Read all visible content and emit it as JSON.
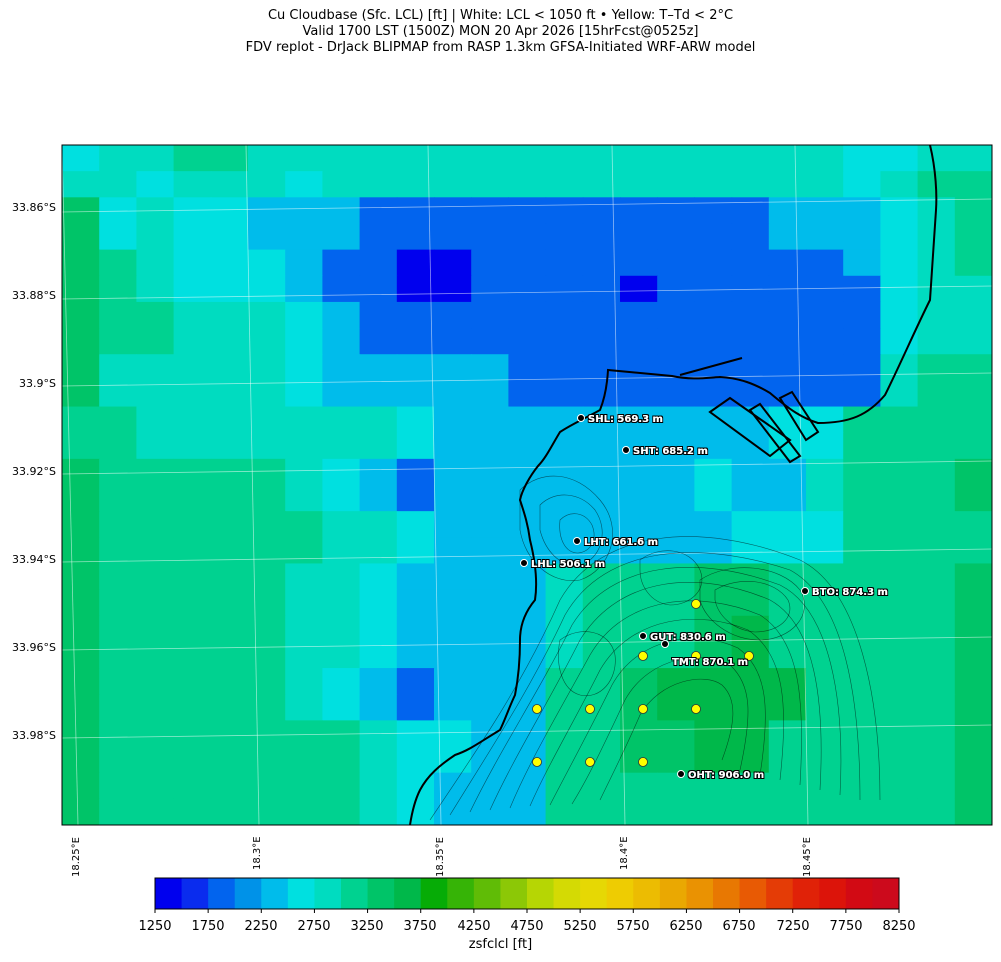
{
  "title": {
    "line1": "Cu Cloudbase (Sfc. LCL) [ft]  |  White: LCL < 1050 ft • Yellow: T–Td < 2°C",
    "line2": "Valid 1700 LST (1500Z) MON 20 Apr 2026 [15hrFcst@0525z]",
    "line3": "FDV replot - DrJack BLIPMAP from RASP 1.3km GFSA-Initiated WRF-ARW model"
  },
  "axes": {
    "lat_ticks": [
      "33.86°S",
      "33.88°S",
      "33.9°S",
      "33.92°S",
      "33.94°S",
      "33.96°S",
      "33.98°S"
    ],
    "lon_ticks": [
      "18.25°E",
      "18.3°E",
      "18.35°E",
      "18.4°E",
      "18.45°E"
    ]
  },
  "colorbar": {
    "label": "zsfclcl [ft]",
    "ticks": [
      "1250",
      "1750",
      "2250",
      "2750",
      "3250",
      "3750",
      "4250",
      "4750",
      "5250",
      "5750",
      "6250",
      "6750",
      "7250",
      "7750",
      "8250"
    ],
    "colors": [
      "#0000ee",
      "#0a2cee",
      "#0264ee",
      "#0092e8",
      "#00bceb",
      "#00e0e0",
      "#00dcc0",
      "#00d290",
      "#00c468",
      "#00b84a",
      "#06ac06",
      "#36b406",
      "#60bc06",
      "#8cc806",
      "#b6d604",
      "#d4da04",
      "#e6d804",
      "#eecc02",
      "#ecbc02",
      "#eaa802",
      "#ea9202",
      "#e87802",
      "#e85a04",
      "#e43c06",
      "#e02208",
      "#dc140a",
      "#d20a14",
      "#cc0a1c"
    ]
  },
  "stations": [
    {
      "name": "SHL",
      "label": "SHL: 569.3 m"
    },
    {
      "name": "SHT",
      "label": "SHT: 685.2 m"
    },
    {
      "name": "LHT",
      "label": "LHT: 661.6 m"
    },
    {
      "name": "LHL",
      "label": "LHL: 506.1 m"
    },
    {
      "name": "BTO",
      "label": "BTO: 874.3 m"
    },
    {
      "name": "GUT",
      "label": "GUT: 830.6 m"
    },
    {
      "name": "TMT",
      "label": "TMT: 870.1 m"
    },
    {
      "name": "OHT",
      "label": "OHT: 906.0 m"
    }
  ],
  "overlay_legend": {
    "white": "LCL < 1050 ft",
    "yellow": "T–Td < 2°C",
    "yellow_marker_count": 12
  },
  "field": {
    "variable": "zsfclcl",
    "unit": "ft",
    "rows": [
      "3445544444444444444443344",
      "4434443444444444444443455",
      "6343322211111111111222345",
      "6343322211111111111222345",
      "6543332110011111111112345",
      "6543332110011110111111344",
      "6554443211111111111111344",
      "6554443211111111111111344",
      "6444443222221111111111455",
      "6444443222221111111111455",
      "5544444443222222222335555",
      "5544444443222222222335555",
      "6555554321222222232245556",
      "6555554321222222232245556",
      "6555555443222222223335555",
      "6555555443222222223335555",
      "6555554432222455566555556",
      "6555554432222455566555556",
      "6555554432222455567555556",
      "6555554432222455567555556",
      "6555554321222556777755556",
      "6555554321222556777755556",
      "6555555543322556677555556",
      "6555555543322556677555556",
      "6555555543222555555555556",
      "6555555543222555555555556"
    ]
  }
}
